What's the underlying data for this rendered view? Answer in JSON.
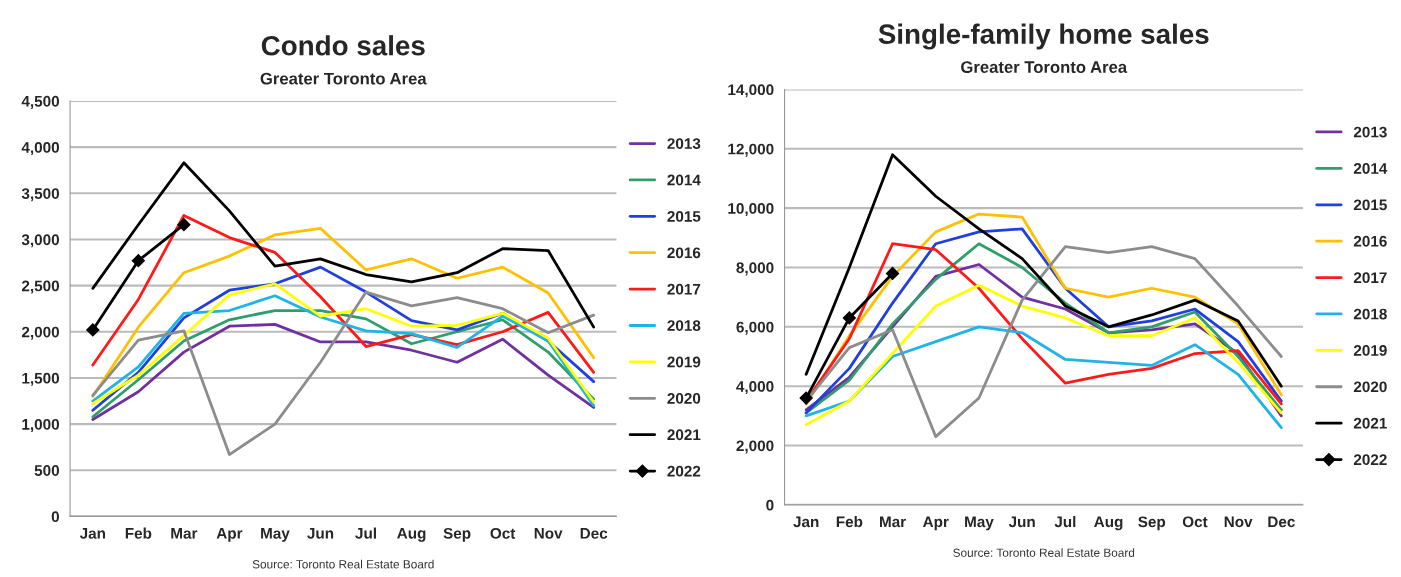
{
  "chart_data": [
    {
      "type": "line",
      "title": "Condo sales",
      "subtitle": "Greater Toronto Area",
      "annotations": [
        "Source: Toronto Real Estate Board"
      ],
      "categories": [
        "Jan",
        "Feb",
        "Mar",
        "Apr",
        "May",
        "Jun",
        "Jul",
        "Aug",
        "Sep",
        "Oct",
        "Nov",
        "Dec"
      ],
      "ylim": [
        0,
        4500
      ],
      "yticks": [
        {
          "value": 0,
          "label": "0"
        },
        {
          "value": 500,
          "label": "500"
        },
        {
          "value": 1000,
          "label": "1,000"
        },
        {
          "value": 1500,
          "label": "1,500"
        },
        {
          "value": 2000,
          "label": "2,000"
        },
        {
          "value": 2500,
          "label": "2,500"
        },
        {
          "value": 3000,
          "label": "3,000"
        },
        {
          "value": 3500,
          "label": "3,500"
        },
        {
          "value": 4000,
          "label": "4,000"
        },
        {
          "value": 4500,
          "label": "4,500"
        }
      ],
      "grid": "y",
      "legend": "right",
      "marker": "none",
      "series": [
        {
          "name": "2013",
          "color": "#7030a0",
          "values": [
            1050,
            1350,
            1780,
            2060,
            2080,
            1890,
            1890,
            1800,
            1670,
            1920,
            1530,
            1180
          ]
        },
        {
          "name": "2014",
          "color": "#2e9e6a",
          "values": [
            1080,
            1480,
            1900,
            2130,
            2230,
            2230,
            2140,
            1870,
            2000,
            2130,
            1780,
            1270
          ]
        },
        {
          "name": "2015",
          "color": "#1f3fe0",
          "values": [
            1150,
            1560,
            2150,
            2450,
            2520,
            2700,
            2430,
            2120,
            2020,
            2200,
            1900,
            1460
          ]
        },
        {
          "name": "2016",
          "color": "#ffc000",
          "values": [
            1300,
            2050,
            2640,
            2820,
            3050,
            3120,
            2670,
            2790,
            2580,
            2700,
            2420,
            1720
          ]
        },
        {
          "name": "2017",
          "color": "#ff1a1a",
          "values": [
            1640,
            2350,
            3260,
            3020,
            2860,
            2380,
            1840,
            1970,
            1860,
            2000,
            2210,
            1560
          ]
        },
        {
          "name": "2018",
          "color": "#1fb4e8",
          "values": [
            1250,
            1620,
            2200,
            2230,
            2390,
            2160,
            2010,
            1980,
            1830,
            2170,
            1900,
            1200
          ]
        },
        {
          "name": "2019",
          "color": "#ffff00",
          "values": [
            1220,
            1530,
            1960,
            2400,
            2520,
            2170,
            2250,
            2060,
            2070,
            2200,
            1930,
            1240
          ]
        },
        {
          "name": "2020",
          "color": "#8c8c8c",
          "values": [
            1310,
            1910,
            2010,
            670,
            1000,
            1670,
            2430,
            2280,
            2370,
            2250,
            1990,
            2180
          ]
        },
        {
          "name": "2021",
          "color": "#000000",
          "values": [
            2470,
            3160,
            3830,
            3310,
            2710,
            2790,
            2620,
            2540,
            2640,
            2900,
            2880,
            2050
          ]
        },
        {
          "name": "2022",
          "color": "#000000",
          "marker": "diamond",
          "values": [
            2020,
            2770,
            3160,
            null,
            null,
            null,
            null,
            null,
            null,
            null,
            null,
            null
          ]
        }
      ]
    },
    {
      "type": "line",
      "title": "Single-family home sales",
      "subtitle": "Greater Toronto Area",
      "annotations": [
        "Source: Toronto Real Estate Board"
      ],
      "categories": [
        "Jan",
        "Feb",
        "Mar",
        "Apr",
        "May",
        "Jun",
        "Jul",
        "Aug",
        "Sep",
        "Oct",
        "Nov",
        "Dec"
      ],
      "ylim": [
        0,
        14000
      ],
      "yticks": [
        {
          "value": 0,
          "label": "0"
        },
        {
          "value": 2000,
          "label": "2,000"
        },
        {
          "value": 4000,
          "label": "4,000"
        },
        {
          "value": 6000,
          "label": "6,000"
        },
        {
          "value": 8000,
          "label": "8,000"
        },
        {
          "value": 10000,
          "label": "10,000"
        },
        {
          "value": 12000,
          "label": "12,000"
        },
        {
          "value": 14000,
          "label": "14,000"
        }
      ],
      "grid": "y",
      "legend": "right",
      "marker": "none",
      "series": [
        {
          "name": "2013",
          "color": "#7030a0",
          "values": [
            3200,
            4300,
            6000,
            7700,
            8100,
            7000,
            6600,
            5800,
            5900,
            6100,
            5100,
            3000
          ]
        },
        {
          "name": "2014",
          "color": "#2e9e6a",
          "values": [
            3100,
            4200,
            6100,
            7600,
            8800,
            8000,
            6800,
            5800,
            6000,
            6500,
            5000,
            3200
          ]
        },
        {
          "name": "2015",
          "color": "#1f3fe0",
          "values": [
            3100,
            4600,
            6800,
            8800,
            9200,
            9300,
            7300,
            6000,
            6200,
            6600,
            5500,
            3500
          ]
        },
        {
          "name": "2016",
          "color": "#ffc000",
          "values": [
            3400,
            5700,
            7700,
            9200,
            9800,
            9700,
            7300,
            7000,
            7300,
            7000,
            6100,
            3700
          ]
        },
        {
          "name": "2017",
          "color": "#ff1a1a",
          "values": [
            3500,
            5600,
            8800,
            8600,
            7300,
            5600,
            4100,
            4400,
            4600,
            5100,
            5200,
            3400
          ]
        },
        {
          "name": "2018",
          "color": "#1fb4e8",
          "values": [
            3000,
            3500,
            5000,
            5500,
            6000,
            5800,
            4900,
            4800,
            4700,
            5400,
            4400,
            2600
          ]
        },
        {
          "name": "2019",
          "color": "#ffff00",
          "values": [
            2700,
            3500,
            5100,
            6700,
            7400,
            6700,
            6300,
            5700,
            5700,
            6300,
            4800,
            3100
          ]
        },
        {
          "name": "2020",
          "color": "#8c8c8c",
          "values": [
            3500,
            5300,
            5900,
            2300,
            3600,
            6900,
            8700,
            8500,
            8700,
            8300,
            6700,
            5000
          ]
        },
        {
          "name": "2021",
          "color": "#000000",
          "values": [
            4400,
            8000,
            11800,
            10400,
            9300,
            8300,
            6700,
            6000,
            6400,
            6900,
            6200,
            4000
          ]
        },
        {
          "name": "2022",
          "color": "#000000",
          "marker": "diamond",
          "values": [
            3600,
            6300,
            7800,
            null,
            null,
            null,
            null,
            null,
            null,
            null,
            null,
            null
          ]
        }
      ]
    }
  ]
}
